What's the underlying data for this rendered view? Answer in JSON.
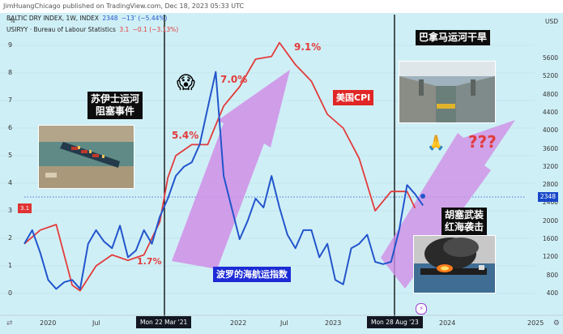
{
  "header": {
    "text": "JimHuangChicago published on TradingView.com, Dec 18, 2023 05:33 UTC"
  },
  "legend": {
    "row1_name": "BALTIC DRY INDEX, 1W, INDEX",
    "row1_value": "2348",
    "row1_change": "−13’ (−5.44%)",
    "row2_name": "USIRYY · Bureau of Labour Statistics",
    "row2_value": "3.1",
    "row2_change": "−0.1 (−3.13%)"
  },
  "axes": {
    "left_unit": "%",
    "right_unit": "USD",
    "left_ticks": [
      "9",
      "8",
      "7",
      "6",
      "5",
      "4",
      "3",
      "2",
      "1",
      "0"
    ],
    "right_ticks": [
      "5600",
      "5200",
      "4800",
      "4400",
      "4000",
      "3600",
      "3200",
      "2800",
      "2400",
      "2000",
      "1600",
      "1200",
      "800",
      "400"
    ],
    "x_ticks": [
      "2020",
      "Jul",
      "2022",
      "Jul",
      "2023",
      "Jul",
      "2024",
      "2025"
    ],
    "x_badge_1": "Mon 22 Mar '21",
    "x_badge_2": "Mon 28 Aug '23",
    "right_price_badge": "2348",
    "left_value_badge": "3.1"
  },
  "annotations": {
    "suez": "苏伊士运河\n阻塞事件",
    "panama": "巴拿马运河干旱",
    "houthi": "胡塞武装\n红海袭击",
    "cpi_label": "美国CPI",
    "bdi_label": "波罗的海航运指数",
    "pct_17": "1.7%",
    "pct_54": "5.4%",
    "pct_70": "7.0%",
    "pct_91": "9.1%",
    "question": "???",
    "emoji_scream": "😱",
    "emoji_pray": "🙏"
  },
  "colors": {
    "background": "#cfeff6",
    "bdi_line": "#2255cc",
    "cpi_line": "#e23b3b",
    "arrow": "#d08ee6",
    "annotation_red": "#e23b3b"
  },
  "chart_data": {
    "type": "line",
    "x_range": [
      "2019-10",
      "2025-02"
    ],
    "left_axis_ylim": [
      0,
      9.5
    ],
    "right_axis_ylim": [
      0,
      5800
    ],
    "series": [
      {
        "name": "BALTIC DRY INDEX, 1W, INDEX",
        "axis": "right",
        "x": [
          "2019-10",
          "2019-11",
          "2019-12",
          "2020-01",
          "2020-02",
          "2020-03",
          "2020-04",
          "2020-05",
          "2020-06",
          "2020-07",
          "2020-08",
          "2020-09",
          "2020-10",
          "2020-11",
          "2020-12",
          "2021-01",
          "2021-02",
          "2021-03",
          "2021-04",
          "2021-05",
          "2021-06",
          "2021-07",
          "2021-08",
          "2021-09",
          "2021-10",
          "2021-11",
          "2021-12",
          "2022-01",
          "2022-02",
          "2022-03",
          "2022-04",
          "2022-05",
          "2022-06",
          "2022-07",
          "2022-08",
          "2022-09",
          "2022-10",
          "2022-11",
          "2022-12",
          "2023-01",
          "2023-02",
          "2023-03",
          "2023-04",
          "2023-05",
          "2023-06",
          "2023-07",
          "2023-08",
          "2023-09",
          "2023-10",
          "2023-11",
          "2023-12"
        ],
        "values": [
          1500,
          1800,
          1300,
          700,
          500,
          650,
          700,
          500,
          1500,
          1800,
          1550,
          1400,
          1900,
          1200,
          1350,
          1800,
          1500,
          2100,
          2500,
          3000,
          3200,
          3300,
          3700,
          4500,
          5300,
          3000,
          2300,
          1600,
          2000,
          2500,
          2300,
          3000,
          2300,
          1700,
          1400,
          1800,
          1800,
          1200,
          1500,
          700,
          600,
          1400,
          1500,
          1700,
          1100,
          1050,
          1100,
          1800,
          2800,
          2600,
          2348
        ]
      },
      {
        "name": "USIRYY · Bureau of Labour Statistics",
        "axis": "left",
        "x": [
          "2019-10",
          "2019-12",
          "2020-02",
          "2020-04",
          "2020-05",
          "2020-07",
          "2020-09",
          "2020-11",
          "2021-01",
          "2021-03",
          "2021-04",
          "2021-05",
          "2021-07",
          "2021-09",
          "2021-11",
          "2022-01",
          "2022-03",
          "2022-05",
          "2022-06",
          "2022-08",
          "2022-10",
          "2022-12",
          "2023-02",
          "2023-04",
          "2023-06",
          "2023-08",
          "2023-10",
          "2023-11"
        ],
        "values": [
          1.8,
          2.3,
          2.5,
          0.3,
          0.1,
          1.0,
          1.4,
          1.2,
          1.4,
          2.6,
          4.2,
          5.0,
          5.4,
          5.4,
          6.8,
          7.5,
          8.5,
          8.6,
          9.1,
          8.3,
          7.7,
          6.5,
          6.0,
          4.9,
          3.0,
          3.7,
          3.7,
          3.1
        ]
      }
    ]
  }
}
